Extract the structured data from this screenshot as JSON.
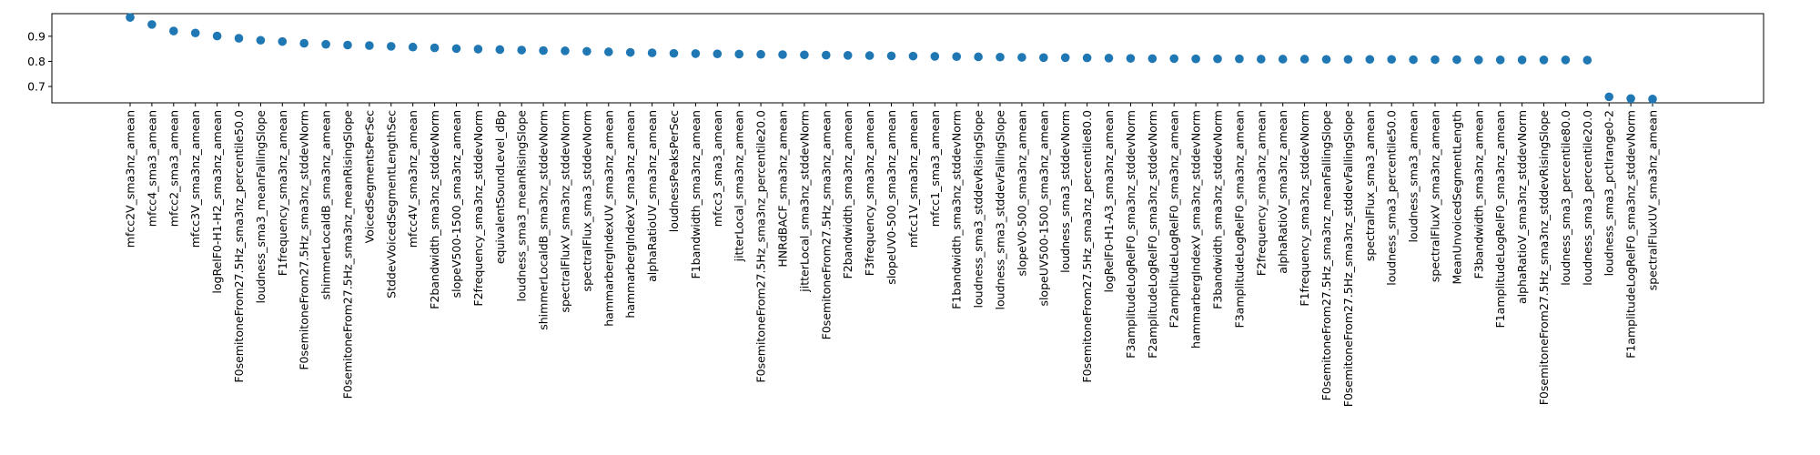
{
  "chart_data": {
    "type": "scatter",
    "title": "",
    "xlabel": "",
    "ylabel": "",
    "grid": false,
    "marker_color": "#1f77b4",
    "ylim": [
      0.635,
      0.99
    ],
    "yticks": [
      0.7,
      0.8,
      0.9
    ],
    "ytick_labels": [
      "0.7",
      "0.8",
      "0.9"
    ],
    "categories": [
      "mfcc2V_sma3nz_amean",
      "mfcc4_sma3_amean",
      "mfcc2_sma3_amean",
      "mfcc3V_sma3nz_amean",
      "logRelF0-H1-H2_sma3nz_amean",
      "F0semitoneFrom27.5Hz_sma3nz_percentile50.0",
      "loudness_sma3_meanFallingSlope",
      "F1frequency_sma3nz_amean",
      "F0semitoneFrom27.5Hz_sma3nz_stddevNorm",
      "shimmerLocaldB_sma3nz_amean",
      "F0semitoneFrom27.5Hz_sma3nz_meanRisingSlope",
      "VoicedSegmentsPerSec",
      "StddevVoicedSegmentLengthSec",
      "mfcc4V_sma3nz_amean",
      "F2bandwidth_sma3nz_stddevNorm",
      "slopeV500-1500_sma3nz_amean",
      "F2frequency_sma3nz_stddevNorm",
      "equivalentSoundLevel_dBp",
      "loudness_sma3_meanRisingSlope",
      "shimmerLocaldB_sma3nz_stddevNorm",
      "spectralFluxV_sma3nz_stddevNorm",
      "spectralFlux_sma3_stddevNorm",
      "hammarbergIndexUV_sma3nz_amean",
      "hammarbergIndexV_sma3nz_amean",
      "alphaRatioUV_sma3nz_amean",
      "loudnessPeaksPerSec",
      "F1bandwidth_sma3nz_amean",
      "mfcc3_sma3_amean",
      "jitterLocal_sma3nz_amean",
      "F0semitoneFrom27.5Hz_sma3nz_percentile20.0",
      "HNRdBACF_sma3nz_amean",
      "jitterLocal_sma3nz_stddevNorm",
      "F0semitoneFrom27.5Hz_sma3nz_amean",
      "F2bandwidth_sma3nz_amean",
      "F3frequency_sma3nz_amean",
      "slopeUV0-500_sma3nz_amean",
      "mfcc1V_sma3nz_amean",
      "mfcc1_sma3_amean",
      "F1bandwidth_sma3nz_stddevNorm",
      "loudness_sma3_stddevRisingSlope",
      "loudness_sma3_stddevFallingSlope",
      "slopeV0-500_sma3nz_amean",
      "slopeUV500-1500_sma3nz_amean",
      "loudness_sma3_stddevNorm",
      "F0semitoneFrom27.5Hz_sma3nz_percentile80.0",
      "logRelF0-H1-A3_sma3nz_amean",
      "F3amplitudeLogRelF0_sma3nz_stddevNorm",
      "F2amplitudeLogRelF0_sma3nz_stddevNorm",
      "F2amplitudeLogRelF0_sma3nz_amean",
      "hammarbergIndexV_sma3nz_stddevNorm",
      "F3bandwidth_sma3nz_stddevNorm",
      "F3amplitudeLogRelF0_sma3nz_amean",
      "F2frequency_sma3nz_amean",
      "alphaRatioV_sma3nz_amean",
      "F1frequency_sma3nz_stddevNorm",
      "F0semitoneFrom27.5Hz_sma3nz_meanFallingSlope",
      "F0semitoneFrom27.5Hz_sma3nz_stddevFallingSlope",
      "spectralFlux_sma3_amean",
      "loudness_sma3_percentile50.0",
      "loudness_sma3_amean",
      "spectralFluxV_sma3nz_amean",
      "MeanUnvoicedSegmentLength",
      "F3bandwidth_sma3nz_amean",
      "F1amplitudeLogRelF0_sma3nz_amean",
      "alphaRatioV_sma3nz_stddevNorm",
      "F0semitoneFrom27.5Hz_sma3nz_stddevRisingSlope",
      "loudness_sma3_percentile80.0",
      "loudness_sma3_percentile20.0",
      "loudness_sma3_pctlrange0-2",
      "F1amplitudeLogRelF0_sma3nz_stddevNorm",
      "spectralFluxUV_sma3nz_amean"
    ],
    "values": [
      0.975,
      0.947,
      0.921,
      0.913,
      0.901,
      0.892,
      0.884,
      0.879,
      0.872,
      0.868,
      0.865,
      0.863,
      0.86,
      0.857,
      0.854,
      0.851,
      0.849,
      0.847,
      0.845,
      0.843,
      0.842,
      0.84,
      0.838,
      0.836,
      0.834,
      0.832,
      0.831,
      0.83,
      0.829,
      0.828,
      0.827,
      0.826,
      0.825,
      0.824,
      0.823,
      0.822,
      0.821,
      0.82,
      0.819,
      0.818,
      0.817,
      0.816,
      0.815,
      0.815,
      0.814,
      0.813,
      0.812,
      0.811,
      0.811,
      0.81,
      0.81,
      0.81,
      0.809,
      0.809,
      0.809,
      0.808,
      0.808,
      0.808,
      0.808,
      0.807,
      0.807,
      0.807,
      0.806,
      0.806,
      0.806,
      0.806,
      0.806,
      0.805,
      0.659,
      0.652,
      0.65
    ]
  }
}
